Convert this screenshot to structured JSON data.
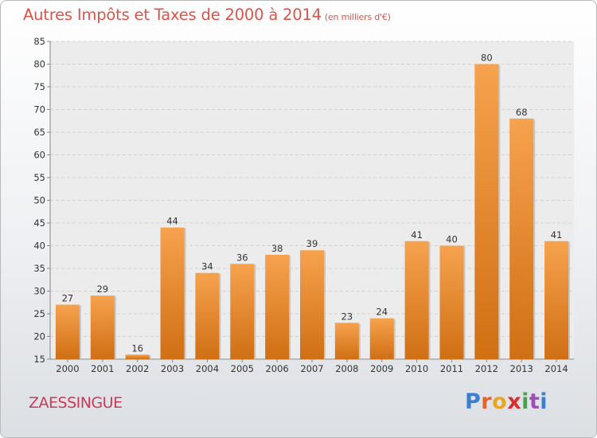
{
  "chart_data": {
    "type": "bar",
    "title": "Autres Impôts et Taxes de 2000 à 2014",
    "unit": "(en milliers d'€)",
    "categories": [
      "2000",
      "2001",
      "2002",
      "2003",
      "2004",
      "2005",
      "2006",
      "2007",
      "2008",
      "2009",
      "2010",
      "2011",
      "2012",
      "2013",
      "2014"
    ],
    "values": [
      27,
      29,
      16,
      44,
      34,
      36,
      38,
      39,
      23,
      24,
      41,
      40,
      80,
      68,
      41
    ],
    "yticks": [
      15,
      20,
      25,
      30,
      35,
      40,
      45,
      50,
      55,
      60,
      65,
      70,
      75,
      80,
      85
    ],
    "ylim": [
      15,
      85
    ],
    "grid": true,
    "bar_color_top": "#f6a24e",
    "bar_color_bottom": "#d06f14"
  },
  "location": "ZAESSINGUE",
  "logo": {
    "letters": [
      "P",
      "r",
      "o",
      "x",
      "i",
      "t",
      "i"
    ],
    "colors": [
      "#3a7fd0",
      "#e3642b",
      "#e7a623",
      "#d62f2f",
      "#46a348",
      "#9e4fb6",
      "#3a7fd0"
    ]
  }
}
